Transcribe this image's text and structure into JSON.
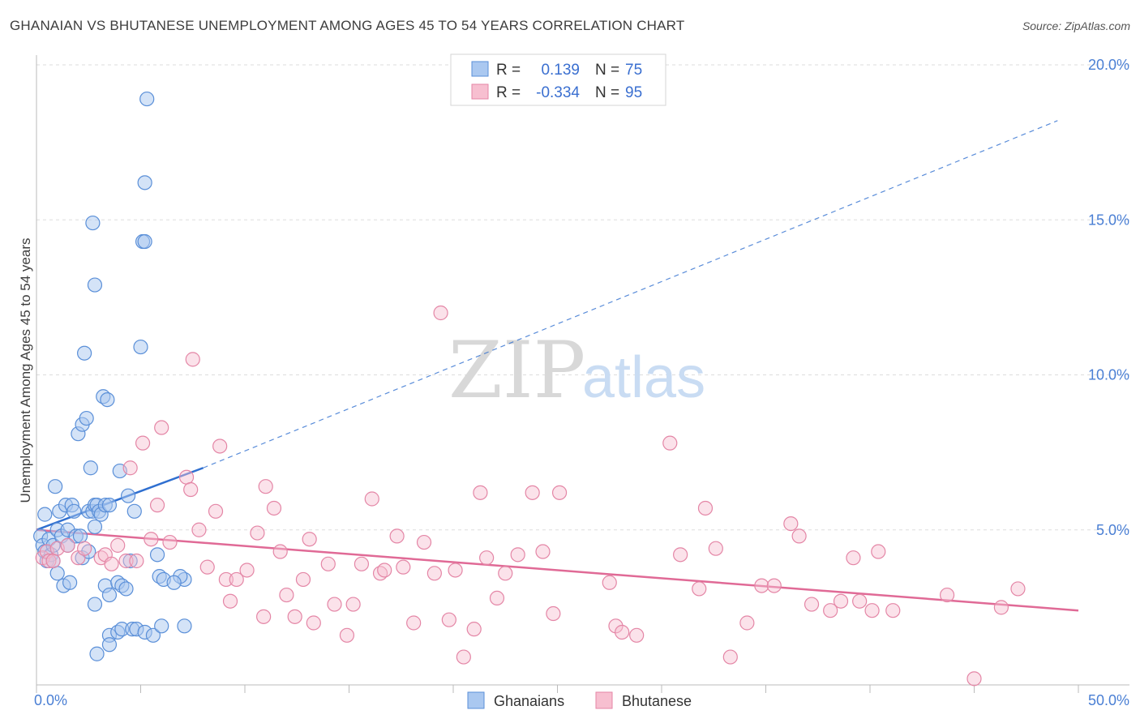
{
  "title": "GHANAIAN VS BHUTANESE UNEMPLOYMENT AMONG AGES 45 TO 54 YEARS CORRELATION CHART",
  "source": "Source: ZipAtlas.com",
  "colors": {
    "blue_fill": "#aac8f0",
    "blue_stroke": "#5a8fd8",
    "blue_line": "#2f6fd0",
    "pink_fill": "#f7bfd0",
    "pink_stroke": "#e486a6",
    "pink_line": "#e06a96",
    "tick_color": "#4a7fd4",
    "grid": "#dddddd"
  },
  "legend": {
    "rows": [
      {
        "r_label": "R =",
        "r_value": "0.139",
        "n_label": "N =",
        "n_value": "75"
      },
      {
        "r_label": "R =",
        "r_value": "-0.334",
        "n_label": "N =",
        "n_value": "95"
      }
    ]
  },
  "bottom_legend": [
    "Ghanaians",
    "Bhutanese"
  ],
  "watermark": {
    "zip": "ZIP",
    "atlas": "atlas"
  },
  "chart_data": {
    "type": "scatter",
    "title": "GHANAIAN VS BHUTANESE UNEMPLOYMENT AMONG AGES 45 TO 54 YEARS CORRELATION CHART",
    "xlabel": "",
    "ylabel": "Unemployment Among Ages 45 to 54 years",
    "xlim": [
      0,
      50
    ],
    "ylim": [
      0,
      20
    ],
    "x_tick_labels": [
      "0.0%",
      "50.0%"
    ],
    "y_ticks": [
      5,
      10,
      15,
      20
    ],
    "y_tick_labels": [
      "5.0%",
      "10.0%",
      "15.0%",
      "20.0%"
    ],
    "grid": true,
    "series": [
      {
        "name": "Ghanaians",
        "r": 0.139,
        "n": 75,
        "trend": {
          "x_start": 0,
          "y_start": 5.0,
          "x_solid_end": 8,
          "y_solid_end": 7.0,
          "x_dashed_end": 49,
          "y_dashed_end": 18.2
        },
        "points": [
          [
            0.2,
            4.8
          ],
          [
            0.3,
            4.5
          ],
          [
            0.4,
            4.3
          ],
          [
            0.4,
            5.5
          ],
          [
            0.5,
            4.0
          ],
          [
            0.6,
            4.7
          ],
          [
            0.7,
            4.2
          ],
          [
            0.8,
            4.5
          ],
          [
            0.8,
            4.0
          ],
          [
            0.9,
            6.4
          ],
          [
            1.0,
            5.0
          ],
          [
            1.0,
            3.6
          ],
          [
            1.1,
            5.6
          ],
          [
            1.2,
            4.8
          ],
          [
            1.3,
            3.2
          ],
          [
            1.4,
            5.8
          ],
          [
            1.5,
            4.5
          ],
          [
            1.5,
            5.0
          ],
          [
            1.6,
            3.3
          ],
          [
            1.7,
            5.8
          ],
          [
            1.8,
            5.6
          ],
          [
            1.9,
            4.8
          ],
          [
            2.0,
            8.1
          ],
          [
            2.1,
            4.8
          ],
          [
            2.2,
            4.1
          ],
          [
            2.2,
            8.4
          ],
          [
            2.3,
            10.7
          ],
          [
            2.4,
            8.6
          ],
          [
            2.5,
            4.3
          ],
          [
            2.5,
            5.6
          ],
          [
            2.6,
            7.0
          ],
          [
            2.7,
            5.6
          ],
          [
            2.7,
            14.9
          ],
          [
            2.8,
            5.8
          ],
          [
            2.8,
            5.1
          ],
          [
            2.8,
            12.9
          ],
          [
            2.8,
            2.6
          ],
          [
            2.9,
            5.8
          ],
          [
            2.9,
            1.0
          ],
          [
            3.0,
            5.6
          ],
          [
            3.1,
            5.5
          ],
          [
            3.2,
            9.3
          ],
          [
            3.3,
            5.8
          ],
          [
            3.3,
            3.2
          ],
          [
            3.4,
            9.2
          ],
          [
            3.5,
            1.6
          ],
          [
            3.5,
            2.9
          ],
          [
            3.5,
            1.3
          ],
          [
            3.5,
            5.8
          ],
          [
            3.9,
            3.3
          ],
          [
            3.9,
            1.7
          ],
          [
            4.0,
            6.9
          ],
          [
            4.1,
            3.2
          ],
          [
            4.1,
            1.8
          ],
          [
            4.3,
            3.1
          ],
          [
            4.4,
            6.1
          ],
          [
            4.5,
            4.0
          ],
          [
            4.6,
            1.8
          ],
          [
            4.7,
            5.6
          ],
          [
            4.8,
            1.8
          ],
          [
            5.0,
            10.9
          ],
          [
            5.1,
            14.3
          ],
          [
            5.2,
            14.3
          ],
          [
            5.2,
            16.2
          ],
          [
            5.2,
            1.7
          ],
          [
            5.3,
            18.9
          ],
          [
            5.6,
            1.6
          ],
          [
            5.8,
            4.2
          ],
          [
            5.9,
            3.5
          ],
          [
            6.0,
            1.9
          ],
          [
            6.1,
            3.4
          ],
          [
            7.1,
            3.4
          ],
          [
            7.1,
            1.9
          ],
          [
            6.9,
            3.5
          ],
          [
            6.6,
            3.3
          ]
        ]
      },
      {
        "name": "Bhutanese",
        "r": -0.334,
        "n": 95,
        "trend": {
          "x_start": 0,
          "y_start": 5.0,
          "x_end": 50,
          "y_end": 2.4
        },
        "points": [
          [
            0.3,
            4.1
          ],
          [
            0.5,
            4.3
          ],
          [
            0.6,
            4.0
          ],
          [
            0.8,
            4.0
          ],
          [
            1.0,
            4.4
          ],
          [
            1.5,
            4.5
          ],
          [
            2.0,
            4.1
          ],
          [
            2.3,
            4.4
          ],
          [
            3.1,
            4.1
          ],
          [
            3.3,
            4.2
          ],
          [
            3.6,
            3.9
          ],
          [
            3.9,
            4.5
          ],
          [
            4.3,
            4.0
          ],
          [
            4.5,
            7.0
          ],
          [
            4.8,
            4.0
          ],
          [
            5.1,
            7.8
          ],
          [
            5.5,
            4.7
          ],
          [
            5.8,
            5.8
          ],
          [
            6.0,
            8.3
          ],
          [
            6.4,
            4.6
          ],
          [
            7.2,
            6.7
          ],
          [
            7.4,
            6.3
          ],
          [
            7.5,
            10.5
          ],
          [
            7.8,
            5.0
          ],
          [
            8.2,
            3.8
          ],
          [
            8.6,
            5.6
          ],
          [
            8.8,
            7.7
          ],
          [
            9.1,
            3.4
          ],
          [
            9.3,
            2.7
          ],
          [
            9.6,
            3.4
          ],
          [
            10.1,
            3.7
          ],
          [
            10.6,
            4.9
          ],
          [
            10.9,
            2.2
          ],
          [
            11.0,
            6.4
          ],
          [
            11.4,
            5.7
          ],
          [
            11.7,
            4.3
          ],
          [
            12.0,
            2.9
          ],
          [
            12.4,
            2.2
          ],
          [
            12.8,
            3.4
          ],
          [
            13.1,
            4.7
          ],
          [
            13.3,
            2.0
          ],
          [
            14.0,
            3.9
          ],
          [
            14.3,
            2.6
          ],
          [
            14.9,
            1.6
          ],
          [
            15.2,
            2.6
          ],
          [
            15.6,
            3.9
          ],
          [
            16.1,
            6.0
          ],
          [
            16.5,
            3.6
          ],
          [
            16.7,
            3.7
          ],
          [
            17.3,
            4.8
          ],
          [
            17.6,
            3.8
          ],
          [
            18.1,
            2.0
          ],
          [
            18.6,
            4.6
          ],
          [
            19.1,
            3.6
          ],
          [
            19.4,
            12.0
          ],
          [
            19.8,
            2.1
          ],
          [
            20.1,
            3.7
          ],
          [
            20.5,
            0.9
          ],
          [
            21.0,
            1.8
          ],
          [
            21.3,
            6.2
          ],
          [
            21.6,
            4.1
          ],
          [
            22.1,
            2.8
          ],
          [
            22.5,
            3.6
          ],
          [
            23.1,
            4.2
          ],
          [
            23.8,
            6.2
          ],
          [
            24.3,
            4.3
          ],
          [
            24.8,
            2.3
          ],
          [
            25.1,
            6.2
          ],
          [
            27.5,
            3.3
          ],
          [
            27.8,
            1.9
          ],
          [
            28.1,
            1.7
          ],
          [
            28.8,
            1.6
          ],
          [
            30.4,
            7.8
          ],
          [
            30.9,
            4.2
          ],
          [
            31.8,
            3.1
          ],
          [
            32.1,
            5.7
          ],
          [
            32.6,
            4.4
          ],
          [
            33.3,
            0.9
          ],
          [
            34.1,
            2.0
          ],
          [
            34.8,
            3.2
          ],
          [
            35.4,
            3.2
          ],
          [
            36.2,
            5.2
          ],
          [
            36.6,
            4.8
          ],
          [
            37.2,
            2.6
          ],
          [
            38.1,
            2.4
          ],
          [
            38.6,
            2.7
          ],
          [
            39.2,
            4.1
          ],
          [
            39.5,
            2.7
          ],
          [
            40.1,
            2.4
          ],
          [
            40.4,
            4.3
          ],
          [
            41.1,
            2.4
          ],
          [
            43.7,
            2.9
          ],
          [
            45.0,
            0.2
          ],
          [
            47.1,
            3.1
          ],
          [
            46.3,
            2.5
          ]
        ]
      }
    ]
  }
}
